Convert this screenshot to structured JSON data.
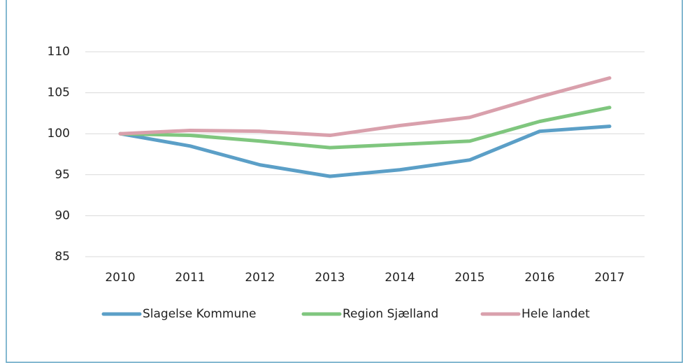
{
  "chart_data": {
    "type": "line",
    "categories": [
      "2010",
      "2011",
      "2012",
      "2013",
      "2014",
      "2015",
      "2016",
      "2017"
    ],
    "series": [
      {
        "name": "Slagelse Kommune",
        "color": "#5b9fc7",
        "values": [
          100,
          98.5,
          96.2,
          94.8,
          95.6,
          96.8,
          100.3,
          100.9
        ]
      },
      {
        "name": "Region Sjælland",
        "color": "#7fc67e",
        "values": [
          100,
          99.8,
          99.1,
          98.3,
          98.7,
          99.1,
          101.5,
          103.2
        ]
      },
      {
        "name": "Hele landet",
        "color": "#d9a0ac",
        "values": [
          100,
          100.4,
          100.3,
          99.8,
          101.0,
          102.0,
          104.5,
          106.8
        ]
      }
    ],
    "ylim": [
      85,
      110
    ],
    "yticks": [
      85,
      90,
      95,
      100,
      105,
      110
    ],
    "grid": true
  }
}
